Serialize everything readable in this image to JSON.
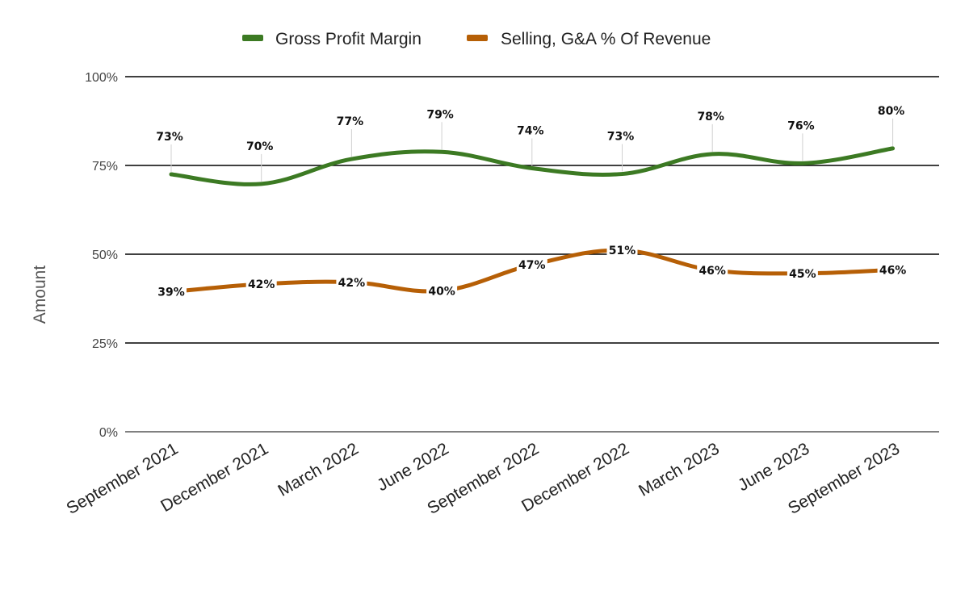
{
  "chart_data": {
    "type": "line",
    "title": "",
    "xlabel": "",
    "ylabel": "Amount",
    "ylim": [
      0,
      100
    ],
    "yticks": [
      "0%",
      "25%",
      "50%",
      "75%",
      "100%"
    ],
    "ytick_values": [
      0,
      25,
      50,
      75,
      100
    ],
    "categories": [
      "September 2021",
      "December 2021",
      "March 2022",
      "June 2022",
      "September 2022",
      "December 2022",
      "March 2023",
      "June 2023",
      "September 2023"
    ],
    "legend_position": "top-center",
    "grid": true,
    "series": [
      {
        "name": "Gross Profit Margin",
        "color": "#3c7a23",
        "values": [
          72.5,
          69.8,
          76.8,
          78.8,
          74.2,
          72.6,
          78.2,
          75.6,
          79.8
        ],
        "labels": [
          "73%",
          "70%",
          "77%",
          "79%",
          "74%",
          "73%",
          "78%",
          "76%",
          "80%"
        ]
      },
      {
        "name": "Selling, G&A % Of Revenue",
        "color": "#b65f06",
        "values": [
          39.4,
          41.6,
          42.1,
          39.7,
          47.0,
          51.1,
          45.5,
          44.6,
          45.6
        ],
        "labels": [
          "39%",
          "42%",
          "42%",
          "40%",
          "47%",
          "51%",
          "46%",
          "45%",
          "46%"
        ]
      }
    ]
  }
}
